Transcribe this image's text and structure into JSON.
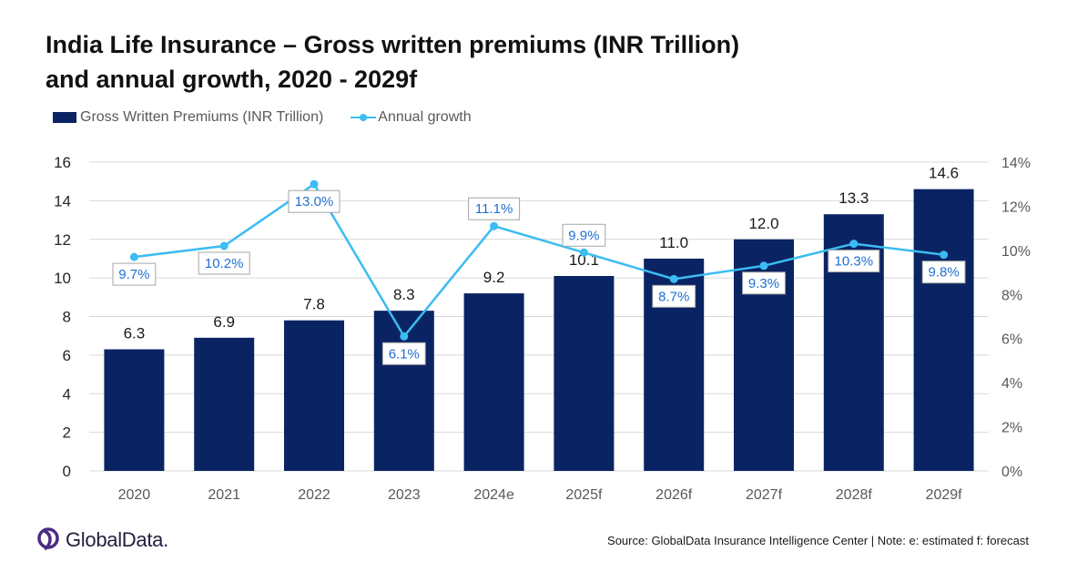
{
  "title_line1": "India Life Insurance – Gross written premiums (INR Trillion)",
  "title_line2": "and annual growth, 2020 - 2029f",
  "legend": {
    "bars_label": "Gross Written Premiums (INR Trillion)",
    "line_label": "Annual growth"
  },
  "footer": {
    "logo_text": "GlobalData.",
    "source": "Source: GlobalData Insurance Intelligence Center | Note: e: estimated f: forecast"
  },
  "colors": {
    "bar": "#0a2463",
    "line": "#3bbcf2",
    "label_text": "#1f6fd1",
    "logo": "#4a2c83"
  },
  "chart_data": {
    "type": "bar",
    "categories": [
      "2020",
      "2021",
      "2022",
      "2023",
      "2024e",
      "2025f",
      "2026f",
      "2027f",
      "2028f",
      "2029f"
    ],
    "series": [
      {
        "name": "Gross Written Premiums (INR Trillion)",
        "type": "bar",
        "axis": "left",
        "values": [
          6.3,
          6.9,
          7.8,
          8.3,
          9.2,
          10.1,
          11.0,
          12.0,
          13.3,
          14.6
        ],
        "labels": [
          "6.3",
          "6.9",
          "7.8",
          "8.3",
          "9.2",
          "10.1",
          "11.0",
          "12.0",
          "13.3",
          "14.6"
        ]
      },
      {
        "name": "Annual growth",
        "type": "line",
        "axis": "right",
        "values": [
          9.7,
          10.2,
          13.0,
          6.1,
          11.1,
          9.9,
          8.7,
          9.3,
          10.3,
          9.8
        ],
        "labels": [
          "9.7%",
          "10.2%",
          "13.0%",
          "6.1%",
          "11.1%",
          "9.9%",
          "8.7%",
          "9.3%",
          "10.3%",
          "9.8%"
        ],
        "label_position": [
          "below",
          "below",
          "below",
          "below",
          "above",
          "above",
          "below",
          "below",
          "below",
          "below"
        ]
      }
    ],
    "ylim": [
      0,
      16
    ],
    "y_ticks": [
      "0",
      "2",
      "4",
      "6",
      "8",
      "10",
      "12",
      "14",
      "16"
    ],
    "y2lim": [
      0,
      14
    ],
    "y2_ticks": [
      "0%",
      "2%",
      "4%",
      "6%",
      "8%",
      "10%",
      "12%",
      "14%"
    ],
    "grid": true,
    "legend_position": "top-left"
  }
}
